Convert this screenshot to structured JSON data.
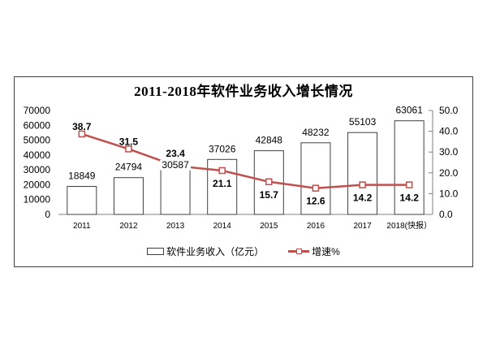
{
  "chart_data": {
    "type": "bar",
    "title": "2011-2018年软件业务收入增长情况",
    "categories": [
      "2011",
      "2012",
      "2013",
      "2014",
      "2015",
      "2016",
      "2017",
      "2018(快报）"
    ],
    "series": [
      {
        "name": "软件业务收入（亿元）",
        "type": "bar",
        "axis": "left",
        "values": [
          18849,
          24794,
          30587,
          37026,
          42848,
          48232,
          55103,
          63061
        ]
      },
      {
        "name": "增速%",
        "type": "line",
        "axis": "right",
        "values": [
          38.7,
          31.5,
          23.4,
          21.1,
          15.7,
          12.6,
          14.2,
          14.2
        ]
      }
    ],
    "left_axis": {
      "min": 0,
      "max": 70000,
      "step": 10000,
      "ticks": [
        "0",
        "10000",
        "20000",
        "30000",
        "40000",
        "50000",
        "60000",
        "70000"
      ]
    },
    "right_axis": {
      "min": 0,
      "max": 50,
      "step": 10,
      "ticks": [
        "0.0",
        "10.0",
        "20.0",
        "30.0",
        "40.0",
        "50.0"
      ]
    },
    "grid": false,
    "legend_position": "bottom",
    "bar_label_dy": [
      -9,
      -9,
      -1,
      -9,
      -9,
      -9,
      -9,
      -9
    ],
    "line_label_dy": [
      -5,
      -5,
      -11,
      20,
      20,
      20,
      20,
      20
    ]
  },
  "colors": {
    "line": "#C0504D",
    "marker_fill": "#FFFFFF",
    "bar_fill": "#FFFFFF",
    "bar_stroke": "#404040",
    "axis": "#808080",
    "text": "#000000"
  },
  "legend": {
    "bar_label": "软件业务收入（亿元）",
    "line_label": "增速%"
  }
}
